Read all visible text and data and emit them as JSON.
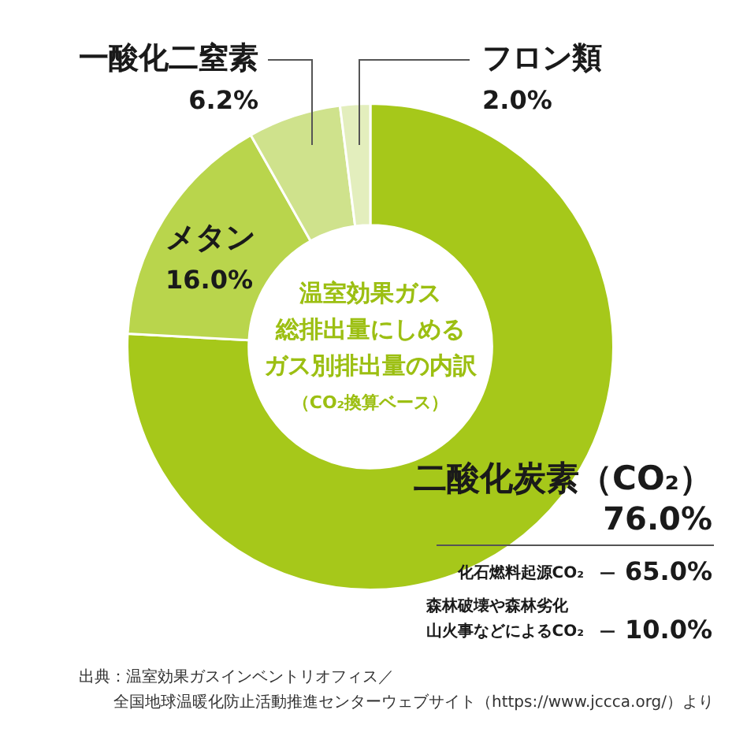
{
  "chart_data": {
    "type": "donut",
    "title": "温室効果ガス総排出量にしめるガス別排出量の内訳",
    "subtitle": "（CO₂換算ベース）",
    "categories": [
      "二酸化炭素（CO₂）",
      "メタン",
      "一酸化二窒素",
      "フロン類"
    ],
    "values": [
      76.0,
      16.0,
      6.2,
      2.0
    ],
    "value_labels": [
      "76.0%",
      "16.0%",
      "6.2%",
      "2.0%"
    ],
    "colors": [
      "#a6c81a",
      "#b9d54c",
      "#cfe28c",
      "#e3eebd"
    ],
    "legend": false,
    "annotations": [
      "化石燃料起源CO₂ — 65.0%",
      "森林破壊や森林劣化山火事などによるCO₂ — 10.0%",
      "出典：温室効果ガスインベントリオフィス／",
      "全国地球温暖化防止活動推進センターウェブサイト（https://www.jccca.org/）より"
    ]
  }
}
